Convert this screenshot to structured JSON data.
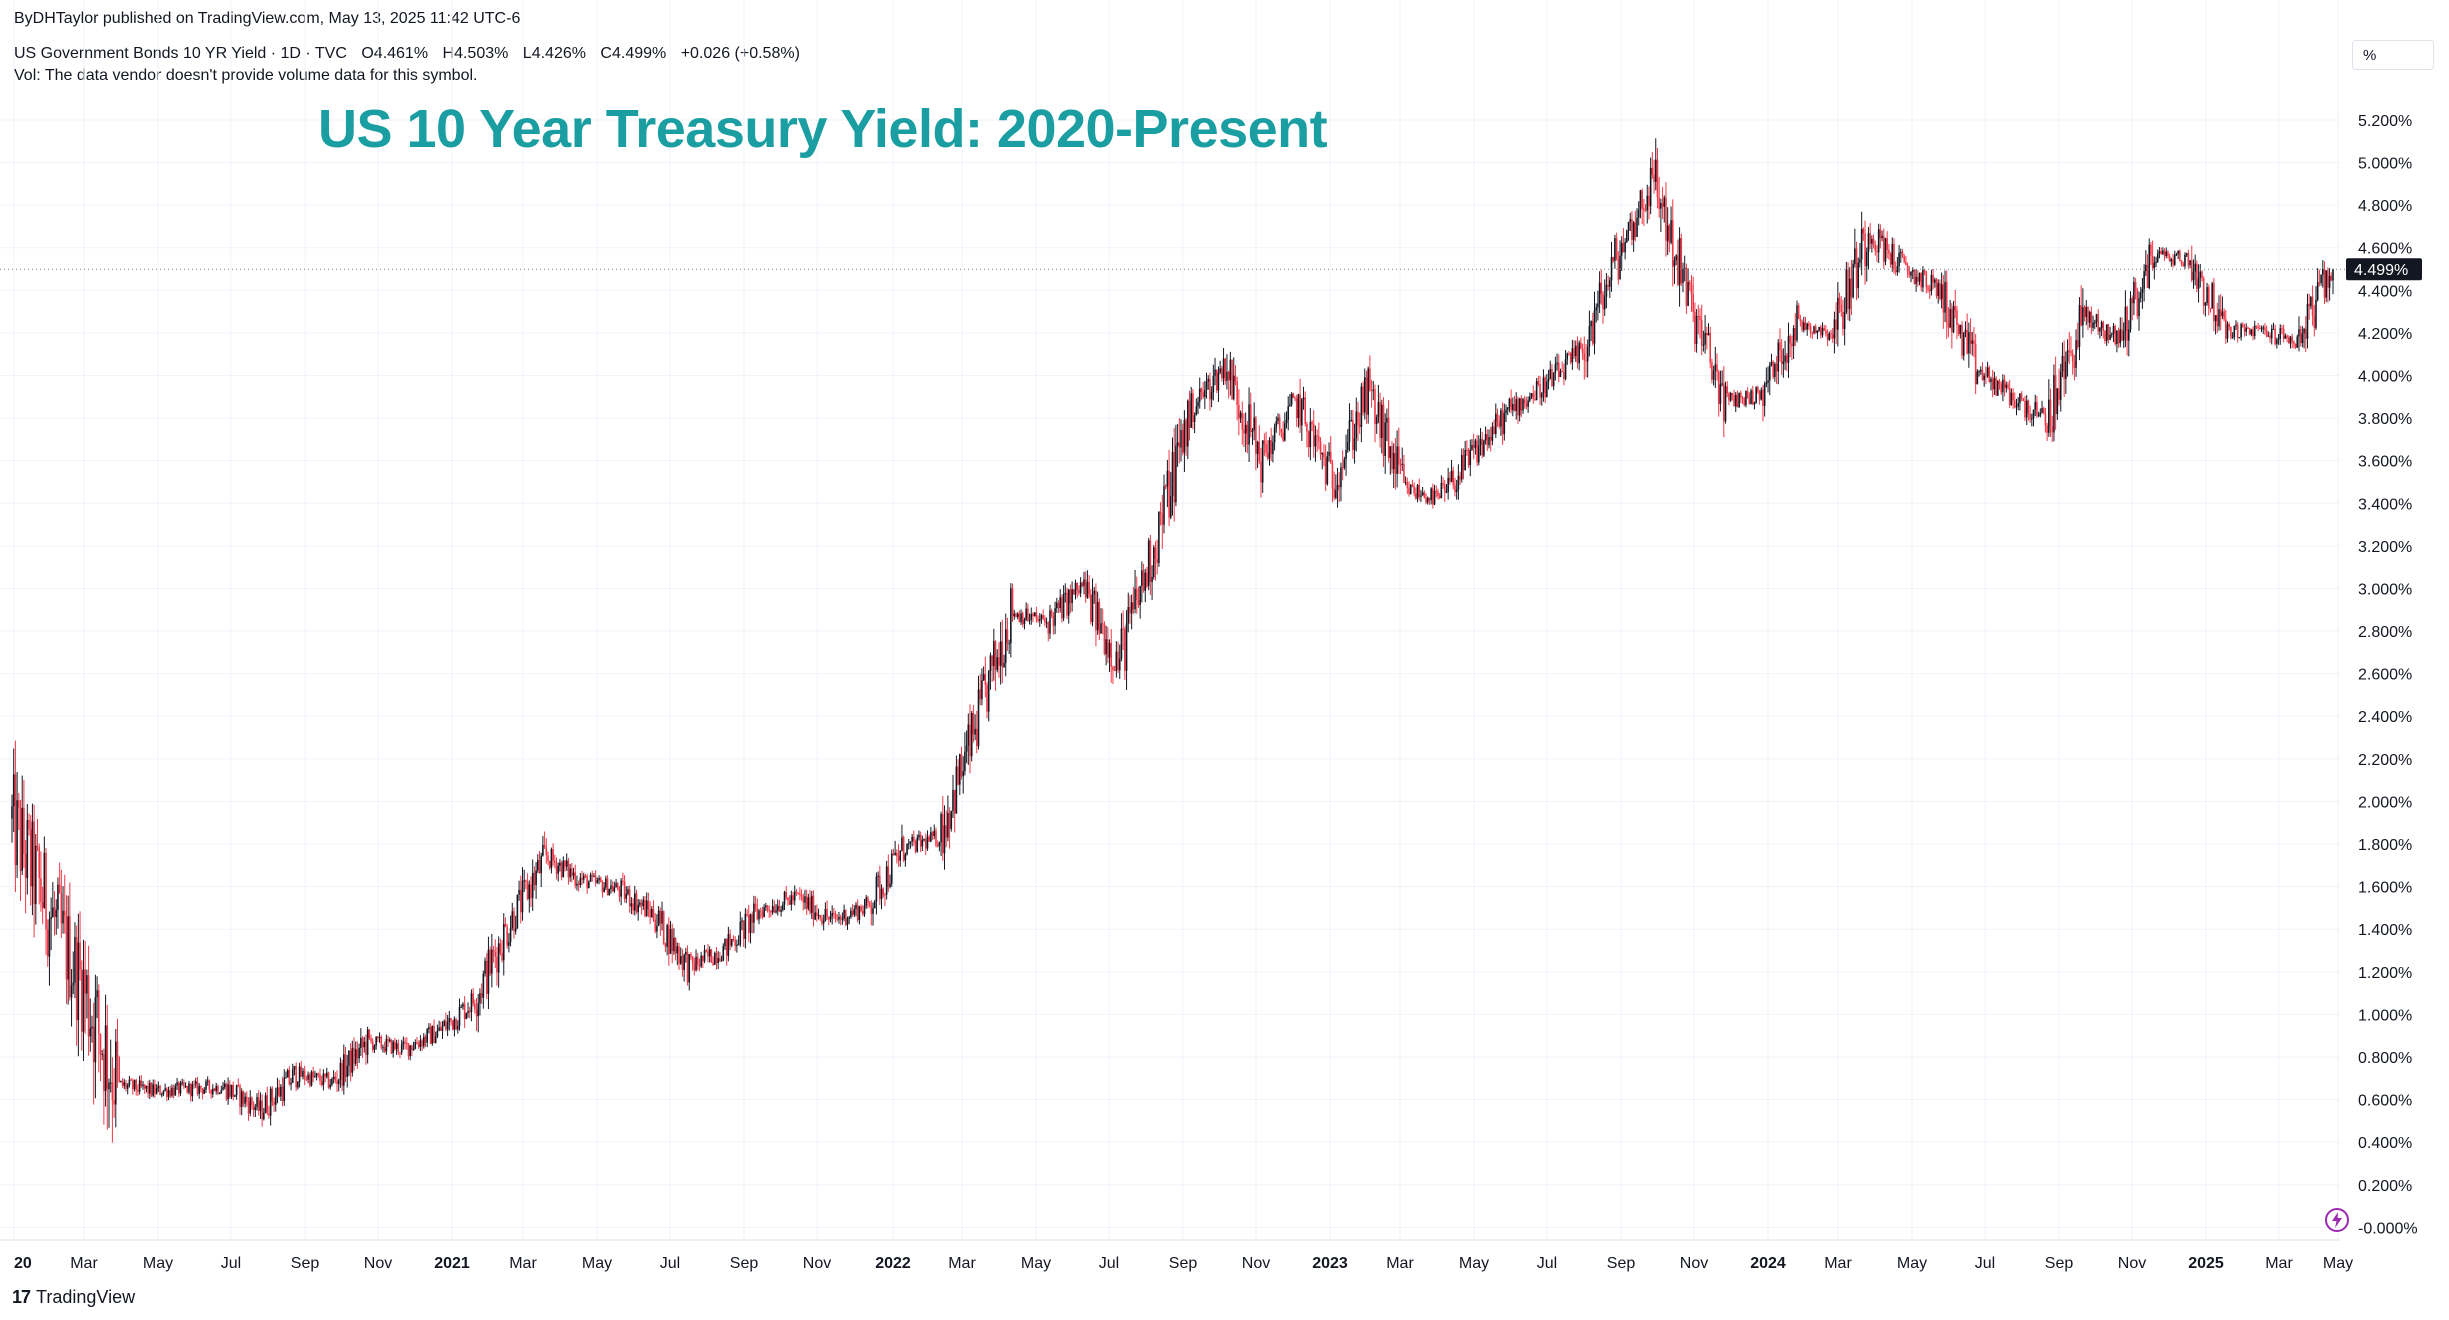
{
  "header": {
    "published": "ByDHTaylor published on TradingView.com, May 13, 2025 11:42 UTC-6",
    "symbol": "US Government Bonds 10 YR Yield · 1D · TVC",
    "open": "O4.461%",
    "high": "H4.503%",
    "low": "L4.426%",
    "close": "C4.499%",
    "change": "+0.026 (+0.58%)",
    "volume_note": "Vol: The data vendor doesn't provide volume data for this symbol."
  },
  "unit_label": "%",
  "last_price_label": "4.499%",
  "footer": {
    "brand": "TradingView"
  },
  "colors": {
    "title": "#1a9ea2",
    "up": "#131722",
    "down": "#f23645",
    "grid": "#f0f3fa",
    "price_tag": "#131722"
  },
  "chart_data": {
    "type": "candlestick",
    "title": "US 10 Year Treasury Yield: 2020-Present",
    "ylabel": "%",
    "ylim": [
      -0.05,
      5.35
    ],
    "y_ticks": [
      "-0.000%",
      "0.200%",
      "0.400%",
      "0.600%",
      "0.800%",
      "1.000%",
      "1.200%",
      "1.400%",
      "1.600%",
      "1.800%",
      "2.000%",
      "2.200%",
      "2.400%",
      "2.600%",
      "2.800%",
      "3.000%",
      "3.200%",
      "3.400%",
      "3.600%",
      "3.800%",
      "4.000%",
      "4.200%",
      "4.400%",
      "4.600%",
      "4.800%",
      "5.000%",
      "5.200%"
    ],
    "x_ticks": [
      {
        "label": "20",
        "year": true
      },
      {
        "label": "Mar",
        "year": false
      },
      {
        "label": "May",
        "year": false
      },
      {
        "label": "Jul",
        "year": false
      },
      {
        "label": "Sep",
        "year": false
      },
      {
        "label": "Nov",
        "year": false
      },
      {
        "label": "2021",
        "year": true
      },
      {
        "label": "Mar",
        "year": false
      },
      {
        "label": "May",
        "year": false
      },
      {
        "label": "Jul",
        "year": false
      },
      {
        "label": "Sep",
        "year": false
      },
      {
        "label": "Nov",
        "year": false
      },
      {
        "label": "2022",
        "year": true
      },
      {
        "label": "Mar",
        "year": false
      },
      {
        "label": "May",
        "year": false
      },
      {
        "label": "Jul",
        "year": false
      },
      {
        "label": "Sep",
        "year": false
      },
      {
        "label": "Nov",
        "year": false
      },
      {
        "label": "2023",
        "year": true
      },
      {
        "label": "Mar",
        "year": false
      },
      {
        "label": "May",
        "year": false
      },
      {
        "label": "Jul",
        "year": false
      },
      {
        "label": "Sep",
        "year": false
      },
      {
        "label": "Nov",
        "year": false
      },
      {
        "label": "2024",
        "year": true
      },
      {
        "label": "Mar",
        "year": false
      },
      {
        "label": "May",
        "year": false
      },
      {
        "label": "Jul",
        "year": false
      },
      {
        "label": "Sep",
        "year": false
      },
      {
        "label": "Nov",
        "year": false
      },
      {
        "label": "2025",
        "year": true
      },
      {
        "label": "Mar",
        "year": false
      },
      {
        "label": "May",
        "year": false
      }
    ],
    "months": [
      "2020-01",
      "2020-02",
      "2020-03",
      "2020-04",
      "2020-05",
      "2020-06",
      "2020-07",
      "2020-08",
      "2020-09",
      "2020-10",
      "2020-11",
      "2020-12",
      "2021-01",
      "2021-02",
      "2021-03",
      "2021-04",
      "2021-05",
      "2021-06",
      "2021-07",
      "2021-08",
      "2021-09",
      "2021-10",
      "2021-11",
      "2021-12",
      "2022-01",
      "2022-02",
      "2022-03",
      "2022-04",
      "2022-05",
      "2022-06",
      "2022-07",
      "2022-08",
      "2022-09",
      "2022-10",
      "2022-11",
      "2022-12",
      "2023-01",
      "2023-02",
      "2023-03",
      "2023-04",
      "2023-05",
      "2023-06",
      "2023-07",
      "2023-08",
      "2023-09",
      "2023-10",
      "2023-11",
      "2023-12",
      "2024-01",
      "2024-02",
      "2024-03",
      "2024-04",
      "2024-05",
      "2024-06",
      "2024-07",
      "2024-08",
      "2024-09",
      "2024-10",
      "2024-11",
      "2024-12",
      "2025-01",
      "2025-02",
      "2025-03",
      "2025-04",
      "2025-05"
    ],
    "series": [
      {
        "name": "US Government Bonds 10 YR Yield",
        "monthly_close": [
          1.52,
          1.15,
          0.67,
          0.64,
          0.65,
          0.66,
          0.55,
          0.72,
          0.68,
          0.87,
          0.84,
          0.92,
          1.07,
          1.44,
          1.74,
          1.63,
          1.59,
          1.47,
          1.22,
          1.31,
          1.49,
          1.55,
          1.44,
          1.51,
          1.78,
          1.83,
          2.34,
          2.89,
          2.84,
          3.01,
          2.65,
          3.19,
          3.83,
          4.05,
          3.61,
          3.87,
          3.51,
          3.92,
          3.47,
          3.42,
          3.64,
          3.84,
          3.96,
          4.11,
          4.57,
          4.93,
          4.33,
          3.88,
          3.91,
          4.25,
          4.2,
          4.68,
          4.5,
          4.4,
          4.03,
          3.9,
          3.78,
          4.28,
          4.17,
          4.57,
          4.54,
          4.21,
          4.21,
          4.16,
          4.499
        ]
      }
    ]
  }
}
